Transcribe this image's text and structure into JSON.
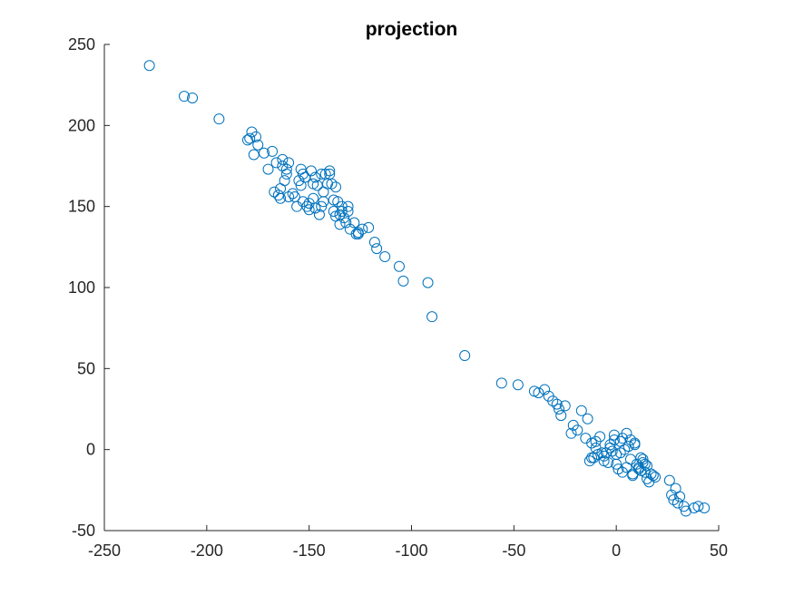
{
  "chart_data": {
    "type": "scatter",
    "title": "projection",
    "xlabel": "",
    "ylabel": "",
    "xlim": [
      -250,
      50
    ],
    "ylim": [
      -50,
      250
    ],
    "xticks": [
      -250,
      -200,
      -150,
      -100,
      -50,
      0,
      50
    ],
    "yticks": [
      -50,
      0,
      50,
      100,
      150,
      200,
      250
    ],
    "grid": false,
    "marker": "circle-open",
    "color": "#0072BD",
    "series": [
      {
        "x": [
          -228,
          -211,
          -207,
          -194,
          -180,
          -178,
          -177,
          -175,
          -170,
          -168,
          -166,
          -165,
          -164,
          -163,
          -162,
          -161,
          -160,
          -158,
          -156,
          -155,
          -154,
          -153,
          -152,
          -151,
          -150,
          -149,
          -148,
          -147,
          -146,
          -145,
          -144,
          -143,
          -142,
          -141,
          -140,
          -139,
          -138,
          -137,
          -136,
          -135,
          -134,
          -133,
          -132,
          -131,
          -130,
          -128,
          -126,
          -124,
          -121,
          -118,
          -117,
          -113,
          -106,
          -104,
          -92,
          -90,
          -74,
          -56,
          -48,
          -40,
          -38,
          -35,
          -33,
          -31,
          -29,
          -28,
          -27,
          -25,
          -22,
          -21,
          -19,
          -17,
          -15,
          -14,
          -13,
          -12,
          -11,
          -10,
          -9,
          -8,
          -7,
          -6,
          -5,
          -4,
          -3,
          -2,
          -1,
          0,
          1,
          2,
          3,
          4,
          5,
          6,
          7,
          8,
          9,
          10,
          11,
          12,
          13,
          14,
          15,
          16,
          17,
          18,
          19,
          26,
          27,
          28,
          29,
          30,
          31,
          33,
          34,
          38,
          40,
          43,
          -179,
          -176,
          -172,
          -167,
          -164,
          -161,
          -157,
          -154,
          -150,
          -147,
          -144,
          -140,
          -137,
          -134,
          -131,
          -127,
          -126,
          -163,
          -160,
          -153,
          -148,
          -143,
          -138,
          -135,
          0,
          3,
          5,
          7,
          9,
          11,
          12,
          13,
          14,
          -3,
          -6,
          -10,
          -12,
          -1,
          2,
          8,
          15
        ],
        "y": [
          237,
          218,
          217,
          204,
          191,
          196,
          182,
          188,
          173,
          184,
          177,
          157,
          161,
          175,
          166,
          173,
          156,
          158,
          150,
          166,
          173,
          153,
          168,
          150,
          148,
          172,
          164,
          149,
          163,
          145,
          170,
          153,
          170,
          164,
          172,
          164,
          154,
          144,
          153,
          145,
          150,
          143,
          140,
          147,
          136,
          140,
          133,
          136,
          137,
          128,
          124,
          119,
          113,
          104,
          103,
          82,
          58,
          41,
          40,
          36,
          35,
          37,
          33,
          30,
          28,
          25,
          21,
          27,
          10,
          15,
          12,
          24,
          7,
          19,
          -7,
          4,
          -5,
          1,
          -3,
          8,
          -2,
          -4,
          -2,
          -8,
          3,
          -1,
          6,
          -9,
          -12,
          5,
          -14,
          0,
          10,
          2,
          -6,
          -16,
          3,
          -9,
          -11,
          -5,
          -8,
          -14,
          -10,
          -20,
          -15,
          -16,
          -17,
          -19,
          -28,
          -31,
          -24,
          -33,
          -29,
          -35,
          -38,
          -36,
          -35,
          -36,
          192,
          193,
          183,
          159,
          155,
          170,
          156,
          163,
          152,
          168,
          150,
          170,
          162,
          147,
          150,
          133,
          134,
          179,
          177,
          170,
          155,
          159,
          147,
          139,
          -3,
          7,
          -11,
          6,
          4,
          -12,
          -13,
          -6,
          -9,
          1,
          -7,
          5,
          -5,
          9,
          -2,
          -15,
          -18
        ]
      }
    ]
  }
}
